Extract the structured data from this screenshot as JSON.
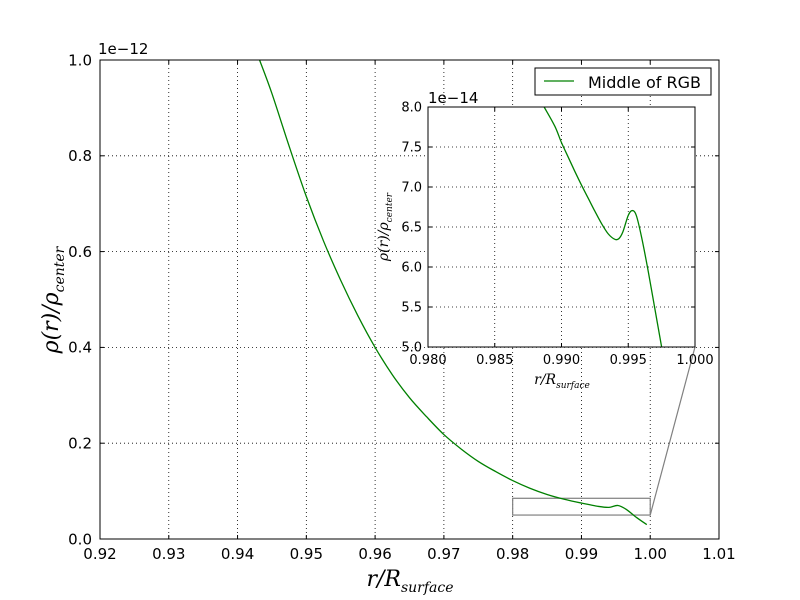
{
  "chart_data": [
    {
      "type": "line",
      "panel": "main",
      "title": "",
      "xlabel_base": "r/R",
      "xlabel_sub": "surface",
      "ylabel_base": "ρ(r)/ρ",
      "ylabel_sub": "center",
      "offset_text": "1e−12",
      "xlim": [
        0.92,
        1.01
      ],
      "ylim": [
        0.0,
        1.0
      ],
      "xticks": [
        "0.92",
        "0.93",
        "0.94",
        "0.95",
        "0.96",
        "0.97",
        "0.98",
        "0.99",
        "1.00",
        "1.01"
      ],
      "yticks": [
        "0.0",
        "0.2",
        "0.4",
        "0.6",
        "0.8",
        "1.0"
      ],
      "grid": true,
      "legend_position": "top-right",
      "series": [
        {
          "name": "Middle of RGB",
          "color": "#008000",
          "x": [
            0.9432,
            0.945,
            0.9475,
            0.95,
            0.9525,
            0.955,
            0.9575,
            0.96,
            0.9625,
            0.965,
            0.9675,
            0.97,
            0.9725,
            0.975,
            0.9775,
            0.98,
            0.9825,
            0.985,
            0.9875,
            0.99,
            0.9925,
            0.994,
            0.9953,
            0.9965,
            0.998,
            0.9995
          ],
          "y": [
            1.0,
            0.93,
            0.82,
            0.715,
            0.622,
            0.54,
            0.466,
            0.4,
            0.343,
            0.295,
            0.255,
            0.218,
            0.188,
            0.162,
            0.141,
            0.122,
            0.106,
            0.093,
            0.083,
            0.075,
            0.068,
            0.066,
            0.07,
            0.062,
            0.045,
            0.03
          ]
        }
      ],
      "zoom_box": {
        "x": [
          0.98,
          1.0
        ],
        "y": [
          0.05,
          0.085
        ]
      }
    },
    {
      "type": "line",
      "panel": "inset",
      "title": "",
      "xlabel_base": "r/R",
      "xlabel_sub": "surface",
      "ylabel_base": "ρ(r)/ρ",
      "ylabel_sub": "center",
      "offset_text": "1e−14",
      "xlim": [
        0.98,
        1.0
      ],
      "ylim": [
        5.0,
        8.5
      ],
      "xticks": [
        "0.980",
        "0.985",
        "0.990",
        "0.995",
        "1.000"
      ],
      "yticks": [
        "5.0",
        "5.5",
        "6.0",
        "6.5",
        "7.0",
        "7.5",
        "8.0"
      ],
      "grid": true,
      "series": [
        {
          "name": "Middle of RGB",
          "color": "#008000",
          "x": [
            0.9887,
            0.9895,
            0.99,
            0.9905,
            0.991,
            0.9915,
            0.992,
            0.9925,
            0.993,
            0.9935,
            0.994,
            0.9943,
            0.9946,
            0.995,
            0.9953,
            0.9956,
            0.996,
            0.9965,
            0.997,
            0.9975
          ],
          "y": [
            8.5,
            8.22,
            7.98,
            7.77,
            7.56,
            7.36,
            7.17,
            6.98,
            6.8,
            6.65,
            6.57,
            6.58,
            6.68,
            6.92,
            6.99,
            6.92,
            6.6,
            6.1,
            5.55,
            5.0
          ]
        }
      ]
    }
  ]
}
